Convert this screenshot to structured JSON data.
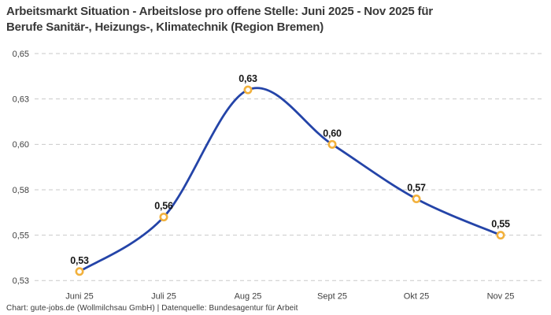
{
  "title": {
    "lines": [
      "Arbeitsmarkt Situation - Arbeitslose pro offene Stelle: Juni 2025 - Nov 2025 für",
      "Berufe Sanitär-, Heizungs-, Klimatechnik (Region Bremen)"
    ]
  },
  "footer": {
    "text": "Chart: gute-jobs.de (Wollmilchsau GmbH) | Datenquelle: Bundesagentur für Arbeit"
  },
  "chart_data": {
    "type": "line",
    "title": "Arbeitsmarkt Situation - Arbeitslose pro offene Stelle: Juni 2025 - Nov 2025 für Berufe Sanitär-, Heizungs-, Klimatechnik (Region Bremen)",
    "categories": [
      "Juni 25",
      "Juli 25",
      "Aug 25",
      "Sept 25",
      "Okt 25",
      "Nov 25"
    ],
    "values": [
      0.53,
      0.56,
      0.63,
      0.6,
      0.57,
      0.55
    ],
    "point_labels": [
      "0,53",
      "0,56",
      "0,63",
      "0,60",
      "0,57",
      "0,55"
    ],
    "xlabel": "",
    "ylabel": "",
    "ylim": [
      0.525,
      0.65
    ],
    "y_ticks": [
      {
        "value": 0.65,
        "label": "0,65"
      },
      {
        "value": 0.625,
        "label": "0,63"
      },
      {
        "value": 0.6,
        "label": "0,60"
      },
      {
        "value": 0.575,
        "label": "0,58"
      },
      {
        "value": 0.55,
        "label": "0,55"
      },
      {
        "value": 0.525,
        "label": "0,53"
      }
    ],
    "grid": "horizontal-dashed",
    "legend": "none",
    "line_smoothing": "spline",
    "colors": {
      "line": "#2444a8",
      "marker_stroke": "#f2b13c",
      "marker_fill": "#ffffff",
      "grid": "#c9c9c9",
      "title_text": "#383838",
      "axis_text": "#3f3f3f",
      "point_label_text": "#161616",
      "background": "#ffffff"
    }
  }
}
